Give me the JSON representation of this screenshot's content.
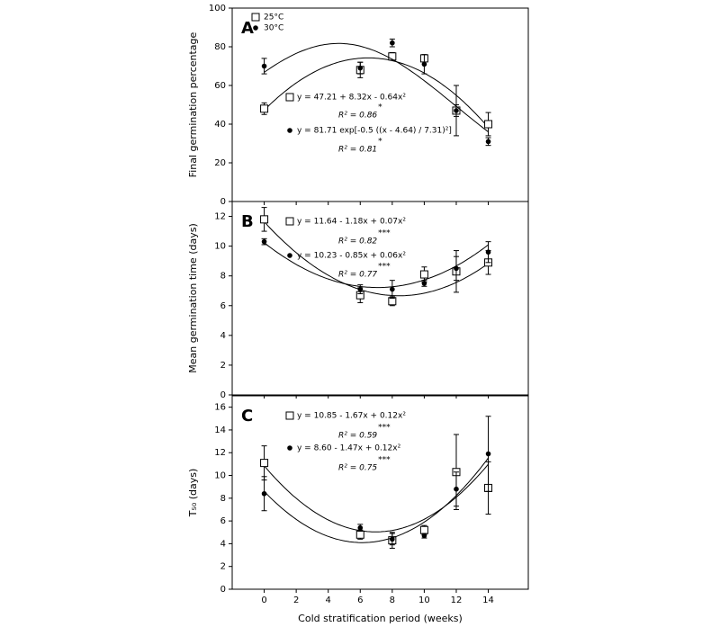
{
  "chart_data": [
    {
      "type": "scatter-fit",
      "panel_label": "A",
      "ylabel": "Final germination percentage",
      "x": [
        0,
        6,
        8,
        10,
        12,
        14
      ],
      "xlim": [
        -2,
        16.5
      ],
      "ylim": [
        0,
        100
      ],
      "yticks": [
        0,
        20,
        40,
        60,
        80,
        100
      ],
      "legend": true,
      "series": [
        {
          "name": "25°C",
          "marker": "square",
          "color": "#000000",
          "values": [
            48,
            68,
            75,
            74,
            47,
            40
          ],
          "errors": [
            3,
            4,
            2,
            1,
            13,
            6
          ],
          "fit_type": "quadratic",
          "fit": [
            47.21,
            8.32,
            -0.64
          ],
          "equation": "y = 47.21 + 8.32x - 0.64x²",
          "r2": "R² = 0.86",
          "sig": "*"
        },
        {
          "name": "30°C",
          "marker": "circle",
          "color": "#000000",
          "values": [
            70,
            69,
            82,
            71,
            47,
            31
          ],
          "errors": [
            4,
            3,
            2,
            5,
            3,
            2
          ],
          "fit_type": "gaussian",
          "fit": [
            81.71,
            4.64,
            7.31
          ],
          "equation": "y = 81.71 exp[-0.5 ((x - 4.64) / 7.31)²]",
          "r2": "R² = 0.81",
          "sig": "*"
        }
      ]
    },
    {
      "type": "scatter-fit",
      "panel_label": "B",
      "ylabel": "Mean germination time (days)",
      "x": [
        0,
        6,
        8,
        10,
        12,
        14
      ],
      "xlim": [
        -2,
        16.5
      ],
      "ylim": [
        0,
        13
      ],
      "yticks": [
        0,
        2,
        4,
        6,
        8,
        10,
        12
      ],
      "legend": false,
      "series": [
        {
          "name": "25°C",
          "marker": "square",
          "color": "#000000",
          "values": [
            11.8,
            6.7,
            6.3,
            8.1,
            8.3,
            8.9
          ],
          "errors": [
            0.8,
            0.5,
            0.3,
            0.5,
            1.4,
            0.8
          ],
          "fit_type": "quadratic",
          "fit": [
            11.64,
            -1.18,
            0.07
          ],
          "equation": "y = 11.64 - 1.18x + 0.07x²",
          "r2": "R² = 0.82",
          "sig": "***"
        },
        {
          "name": "30°C",
          "marker": "circle",
          "color": "#000000",
          "values": [
            10.3,
            7.1,
            7.1,
            7.5,
            8.5,
            9.6
          ],
          "errors": [
            0.2,
            0.3,
            0.6,
            0.2,
            0.8,
            0.7
          ],
          "fit_type": "quadratic",
          "fit": [
            10.23,
            -0.85,
            0.06
          ],
          "equation": "y = 10.23 - 0.85x + 0.06x²",
          "r2": "R² = 0.77",
          "sig": "***"
        }
      ]
    },
    {
      "type": "scatter-fit",
      "panel_label": "C",
      "ylabel": "T₅₀ (days)",
      "xlabel": "Cold stratification period (weeks)",
      "x": [
        0,
        6,
        8,
        10,
        12,
        14
      ],
      "xlim": [
        -2,
        16.5
      ],
      "xticks": [
        0,
        2,
        4,
        6,
        8,
        10,
        12,
        14
      ],
      "ylim": [
        0,
        17
      ],
      "yticks": [
        0,
        2,
        4,
        6,
        8,
        10,
        12,
        14,
        16
      ],
      "legend": false,
      "series": [
        {
          "name": "25°C",
          "marker": "square",
          "color": "#000000",
          "values": [
            11.1,
            4.8,
            4.3,
            5.2,
            10.3,
            8.9
          ],
          "errors": [
            1.5,
            0.4,
            0.7,
            0.4,
            3.3,
            2.3
          ],
          "fit_type": "quadratic",
          "fit": [
            10.85,
            -1.67,
            0.12
          ],
          "equation": "y = 10.85 - 1.67x + 0.12x²",
          "r2": "R² = 0.59",
          "sig": "***"
        },
        {
          "name": "30°C",
          "marker": "circle",
          "color": "#000000",
          "values": [
            8.4,
            5.4,
            4.4,
            4.7,
            8.8,
            11.9
          ],
          "errors": [
            1.5,
            0.3,
            0.5,
            0.2,
            1.5,
            3.3
          ],
          "fit_type": "quadratic",
          "fit": [
            8.6,
            -1.47,
            0.12
          ],
          "equation": "y = 8.60 - 1.47x + 0.12x²",
          "r2": "R² = 0.75",
          "sig": "***"
        }
      ]
    }
  ]
}
